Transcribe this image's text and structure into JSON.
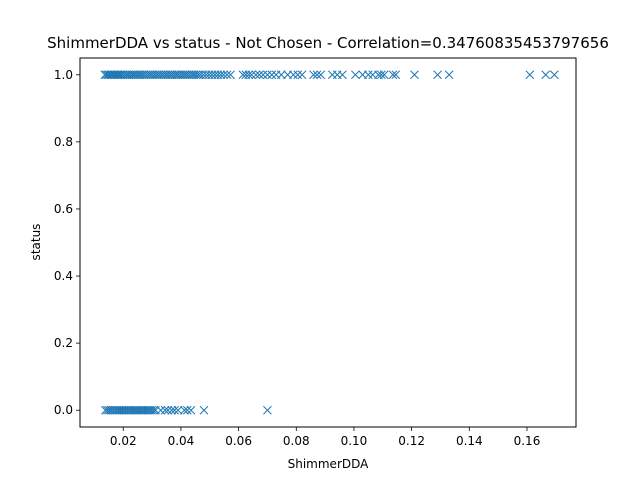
{
  "chart_data": {
    "type": "scatter",
    "title": "ShimmerDDA vs status - Not Chosen - Correlation=0.34760835453797656",
    "xlabel": "ShimmerDDA",
    "ylabel": "status",
    "xlim": [
      0.005,
      0.177
    ],
    "ylim": [
      -0.05,
      1.05
    ],
    "xticks": [
      0.02,
      0.04,
      0.06,
      0.08,
      0.1,
      0.12,
      0.14,
      0.16
    ],
    "xtick_labels": [
      "0.02",
      "0.04",
      "0.06",
      "0.08",
      "0.10",
      "0.12",
      "0.14",
      "0.16"
    ],
    "yticks": [
      0.0,
      0.2,
      0.4,
      0.6,
      0.8,
      1.0
    ],
    "ytick_labels": [
      "0.0",
      "0.2",
      "0.4",
      "0.6",
      "0.8",
      "1.0"
    ],
    "grid": false,
    "marker": "x",
    "color": "#1f77b4",
    "series": [
      {
        "x": [
          0.0136,
          0.0142,
          0.0148,
          0.0152,
          0.0158,
          0.0162,
          0.0168,
          0.0172,
          0.0178,
          0.0182,
          0.0188,
          0.0192,
          0.0198,
          0.0205,
          0.0212,
          0.0218,
          0.0225,
          0.0232,
          0.0238,
          0.0245,
          0.0252,
          0.0258,
          0.0265,
          0.0272,
          0.028,
          0.0288,
          0.0295,
          0.0302,
          0.031,
          0.0318,
          0.0325,
          0.0333,
          0.034,
          0.0348,
          0.0355,
          0.0363,
          0.037,
          0.0378,
          0.0385,
          0.0392,
          0.04,
          0.0408,
          0.0415,
          0.0422,
          0.043,
          0.0438,
          0.0445,
          0.0452,
          0.046,
          0.0468,
          0.0478,
          0.0488,
          0.0498,
          0.0508,
          0.0518,
          0.0528,
          0.0538,
          0.0548,
          0.056,
          0.0572,
          0.0615,
          0.0625,
          0.0635,
          0.0645,
          0.066,
          0.0672,
          0.0685,
          0.07,
          0.0715,
          0.073,
          0.0748,
          0.077,
          0.079,
          0.0805,
          0.082,
          0.086,
          0.0872,
          0.0885,
          0.0925,
          0.0942,
          0.096,
          0.1005,
          0.103,
          0.105,
          0.1065,
          0.1085,
          0.1095,
          0.1105,
          0.1135,
          0.1145,
          0.121,
          0.129,
          0.133,
          0.161,
          0.1665,
          0.1695
        ],
        "y": [
          1,
          1,
          1,
          1,
          1,
          1,
          1,
          1,
          1,
          1,
          1,
          1,
          1,
          1,
          1,
          1,
          1,
          1,
          1,
          1,
          1,
          1,
          1,
          1,
          1,
          1,
          1,
          1,
          1,
          1,
          1,
          1,
          1,
          1,
          1,
          1,
          1,
          1,
          1,
          1,
          1,
          1,
          1,
          1,
          1,
          1,
          1,
          1,
          1,
          1,
          1,
          1,
          1,
          1,
          1,
          1,
          1,
          1,
          1,
          1,
          1,
          1,
          1,
          1,
          1,
          1,
          1,
          1,
          1,
          1,
          1,
          1,
          1,
          1,
          1,
          1,
          1,
          1,
          1,
          1,
          1,
          1,
          1,
          1,
          1,
          1,
          1,
          1,
          1,
          1,
          1,
          1,
          1,
          1,
          1,
          1
        ]
      },
      {
        "x": [
          0.0138,
          0.0145,
          0.0152,
          0.0158,
          0.0165,
          0.0172,
          0.0178,
          0.0185,
          0.019,
          0.0196,
          0.0202,
          0.0208,
          0.0214,
          0.022,
          0.0226,
          0.0232,
          0.0238,
          0.0244,
          0.025,
          0.0256,
          0.0262,
          0.0268,
          0.0274,
          0.028,
          0.0286,
          0.0292,
          0.0298,
          0.0305,
          0.0312,
          0.033,
          0.0345,
          0.0355,
          0.0368,
          0.0378,
          0.039,
          0.0412,
          0.0422,
          0.0435,
          0.048,
          0.07
        ],
        "y": [
          0,
          0,
          0,
          0,
          0,
          0,
          0,
          0,
          0,
          0,
          0,
          0,
          0,
          0,
          0,
          0,
          0,
          0,
          0,
          0,
          0,
          0,
          0,
          0,
          0,
          0,
          0,
          0,
          0,
          0,
          0,
          0,
          0,
          0,
          0,
          0,
          0,
          0,
          0,
          0
        ]
      }
    ]
  }
}
